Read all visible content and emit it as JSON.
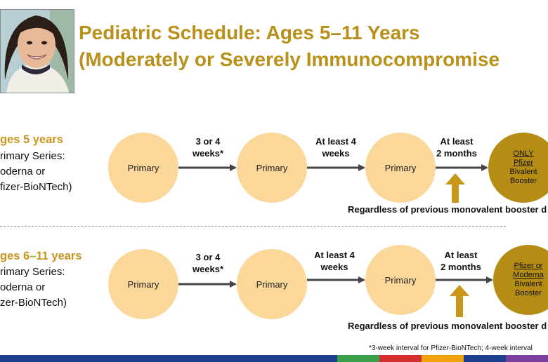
{
  "title": {
    "line1": "Pediatric Schedule: Ages 5–11 Years",
    "line2": "(Moderately or Severely Immunocompromise"
  },
  "rows": [
    {
      "heading": "ges 5 years",
      "desc": [
        "rimary Series:",
        "oderna or",
        "fizer-BioNTech)"
      ],
      "circles": [
        "Primary",
        "Primary",
        "Primary"
      ],
      "intervals": [
        [
          "3 or 4",
          "weeks*"
        ],
        [
          "At least 4",
          "weeks"
        ],
        [
          "At least",
          "2 months"
        ]
      ],
      "booster": {
        "underlined": [
          "ONLY",
          "Pfizer"
        ],
        "plain": [
          "Bivalent",
          "Booster"
        ]
      },
      "note": "Regardless of previous monovalent booster d"
    },
    {
      "heading": "ges 6–11 years",
      "desc": [
        "rimary Series:",
        "oderna or",
        "zer-BioNTech)"
      ],
      "circles": [
        "Primary",
        "Primary",
        "Primary"
      ],
      "intervals": [
        [
          "3 or 4",
          "weeks*"
        ],
        [
          "At least 4",
          "weeks"
        ],
        [
          "At least",
          "2 months"
        ]
      ],
      "booster": {
        "underlined": [
          "Pfizer or",
          "Moderna"
        ],
        "plain": [
          "Bivalent",
          "Booster"
        ]
      },
      "note": "Regardless of previous monovalent booster d"
    }
  ],
  "footnote": "*3-week interval for Pfizer-BioNTech; 4-week interval",
  "colors": {
    "title": "#b8901a",
    "circle": "#fbd89a",
    "booster": "#b58c14",
    "arrow": "#444444",
    "upArrow": "#c9971a",
    "bar": [
      "#1f3f8f",
      "#1f3f8f",
      "#1f3f8f",
      "#1f3f8f",
      "#3a9e4b",
      "#d22f2f",
      "#f0a20e",
      "#1f3f8f",
      "#7a3f9e"
    ]
  },
  "photo_icon": "child-portrait-photo"
}
